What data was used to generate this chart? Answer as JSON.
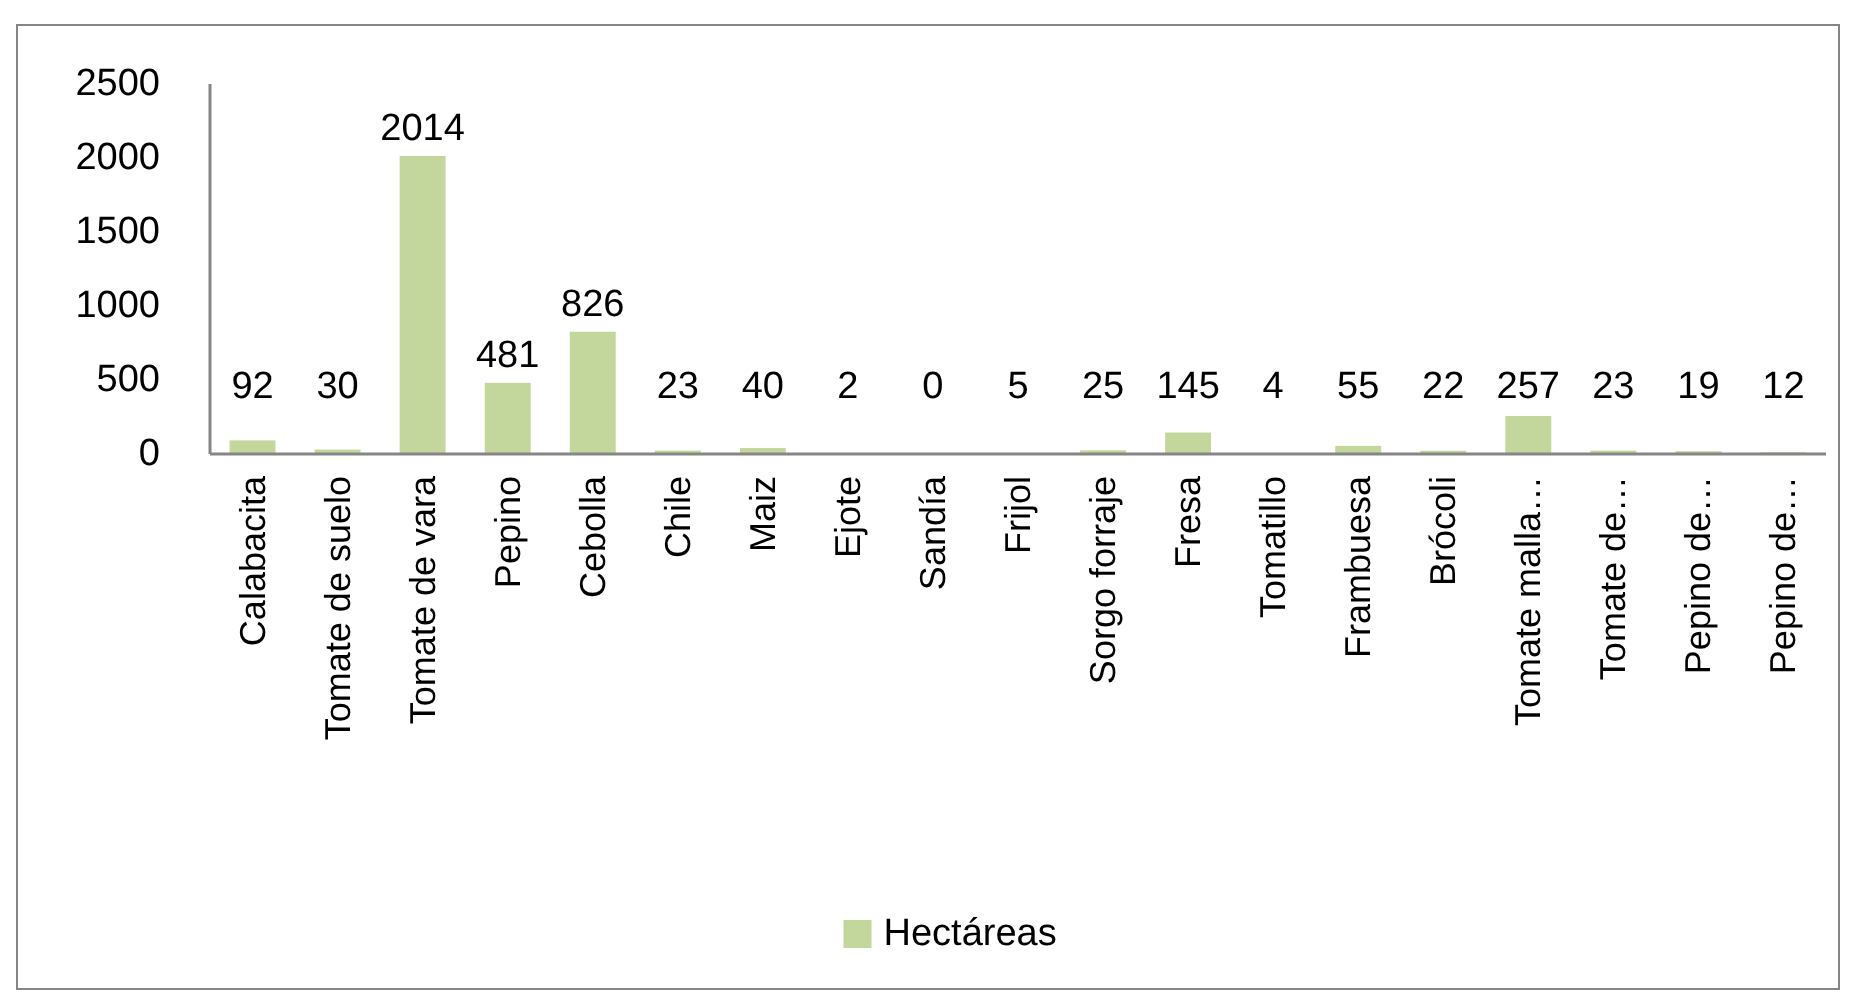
{
  "chart_data": {
    "type": "bar",
    "categories": [
      "Calabacita",
      "Tomate de suelo",
      "Tomate de vara",
      "Pepino",
      "Cebolla",
      "Chile",
      "Maiz",
      "Ejote",
      "Sandía",
      "Frijol",
      "Sorgo forraje",
      "Fresa",
      "Tomatillo",
      "Frambuesa",
      "Brócoli",
      "Tomate malla…",
      "Tomate de…",
      "Pepino de…",
      "Pepino de…"
    ],
    "series": [
      {
        "name": "Hectáreas",
        "color": "#c3d69b",
        "values": [
          92,
          30,
          2014,
          481,
          826,
          23,
          40,
          2,
          0,
          5,
          25,
          145,
          4,
          55,
          22,
          257,
          23,
          19,
          12
        ]
      }
    ],
    "ylim": [
      0,
      2500
    ],
    "yticks": [
      0,
      500,
      1000,
      1500,
      2000,
      2500
    ],
    "data_labels": true,
    "legend": "bottom"
  }
}
